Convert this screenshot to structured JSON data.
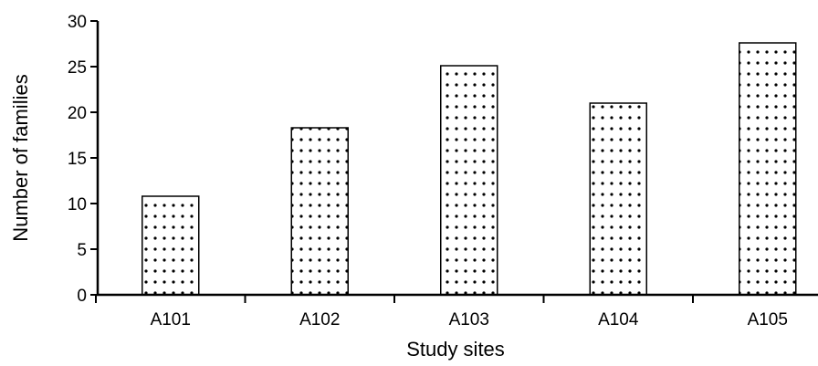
{
  "chart_data": {
    "type": "bar",
    "title": "",
    "xlabel": "Study sites",
    "ylabel": "Number of families",
    "categories": [
      "A101",
      "A102",
      "A103",
      "A104",
      "A105"
    ],
    "values": [
      10.8,
      18.3,
      25.1,
      21.0,
      27.6
    ],
    "ylim": [
      0,
      30
    ],
    "yticks": [
      "0",
      "5",
      "10",
      "15",
      "20",
      "25",
      "30"
    ],
    "grid": false,
    "legend": "none",
    "bar_pattern": "dotted",
    "colors": {
      "bar_fill": "#ffffff",
      "dots": "#000000",
      "axis": "#000000"
    }
  }
}
